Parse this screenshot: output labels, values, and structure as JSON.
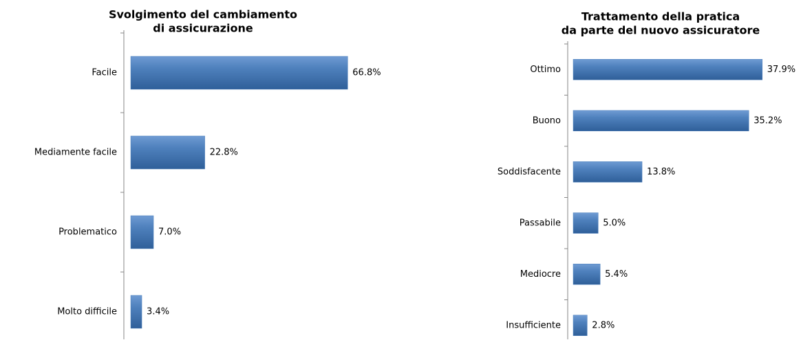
{
  "chart_data": [
    {
      "type": "bar",
      "orientation": "horizontal",
      "title": [
        "Svolgimento del cambiamento",
        "di assicurazione"
      ],
      "categories": [
        "Facile",
        "Mediamente facile",
        "Problematico",
        "Molto difficile"
      ],
      "values": [
        66.8,
        22.8,
        7.0,
        3.4
      ],
      "value_labels": [
        "66.8%",
        "22.8%",
        "7.0%",
        "3.4%"
      ],
      "color": "#4f81bd"
    },
    {
      "type": "bar",
      "orientation": "horizontal",
      "title": [
        "Trattamento della pratica",
        "da parte del nuovo assicuratore"
      ],
      "categories": [
        "Ottimo",
        "Buono",
        "Soddisfacente",
        "Passabile",
        "Mediocre",
        "Insufficiente"
      ],
      "values": [
        37.9,
        35.2,
        13.8,
        5.0,
        5.4,
        2.8
      ],
      "value_labels": [
        "37.9%",
        "35.2%",
        "13.8%",
        "5.0%",
        "5.4%",
        "2.8%"
      ],
      "color": "#4f81bd"
    }
  ]
}
